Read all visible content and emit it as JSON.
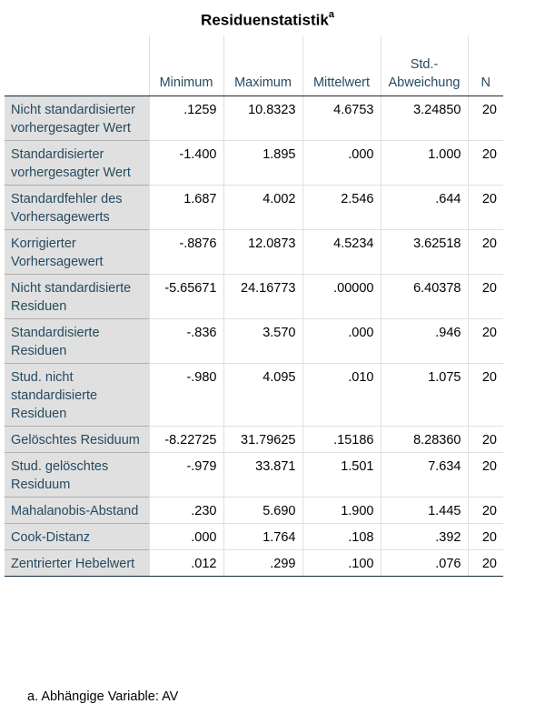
{
  "title": "Residuenstatistik",
  "title_superscript": "a",
  "columns": [
    "Minimum",
    "Maximum",
    "Mittelwert",
    "Std.-Abweichung",
    "N"
  ],
  "rows": [
    {
      "label": "Nicht standardisierter vorhergesagter Wert",
      "values": [
        ".1259",
        "10.8323",
        "4.6753",
        "3.24850",
        "20"
      ]
    },
    {
      "label": "Standardisierter vorhergesagter Wert",
      "values": [
        "-1.400",
        "1.895",
        ".000",
        "1.000",
        "20"
      ]
    },
    {
      "label": "Standardfehler des Vorhersagewerts",
      "values": [
        "1.687",
        "4.002",
        "2.546",
        ".644",
        "20"
      ]
    },
    {
      "label": "Korrigierter Vorhersagewert",
      "values": [
        "-.8876",
        "12.0873",
        "4.5234",
        "3.62518",
        "20"
      ]
    },
    {
      "label": "Nicht standardisierte Residuen",
      "values": [
        "-5.65671",
        "24.16773",
        ".00000",
        "6.40378",
        "20"
      ]
    },
    {
      "label": "Standardisierte Residuen",
      "values": [
        "-.836",
        "3.570",
        ".000",
        ".946",
        "20"
      ]
    },
    {
      "label": "Stud. nicht standardisierte Residuen",
      "values": [
        "-.980",
        "4.095",
        ".010",
        "1.075",
        "20"
      ]
    },
    {
      "label": "Gelöschtes Residuum",
      "values": [
        "-8.22725",
        "31.79625",
        ".15186",
        "8.28360",
        "20"
      ]
    },
    {
      "label": "Stud. gelöschtes Residuum",
      "values": [
        "-.979",
        "33.871",
        "1.501",
        "7.634",
        "20"
      ]
    },
    {
      "label": "Mahalanobis-Abstand",
      "values": [
        ".230",
        "5.690",
        "1.900",
        "1.445",
        "20"
      ]
    },
    {
      "label": "Cook-Distanz",
      "values": [
        ".000",
        "1.764",
        ".108",
        ".392",
        "20"
      ]
    },
    {
      "label": "Zentrierter Hebelwert",
      "values": [
        ".012",
        ".299",
        ".100",
        ".076",
        "20"
      ]
    }
  ],
  "footnote": "a. Abhängige Variable: AV"
}
